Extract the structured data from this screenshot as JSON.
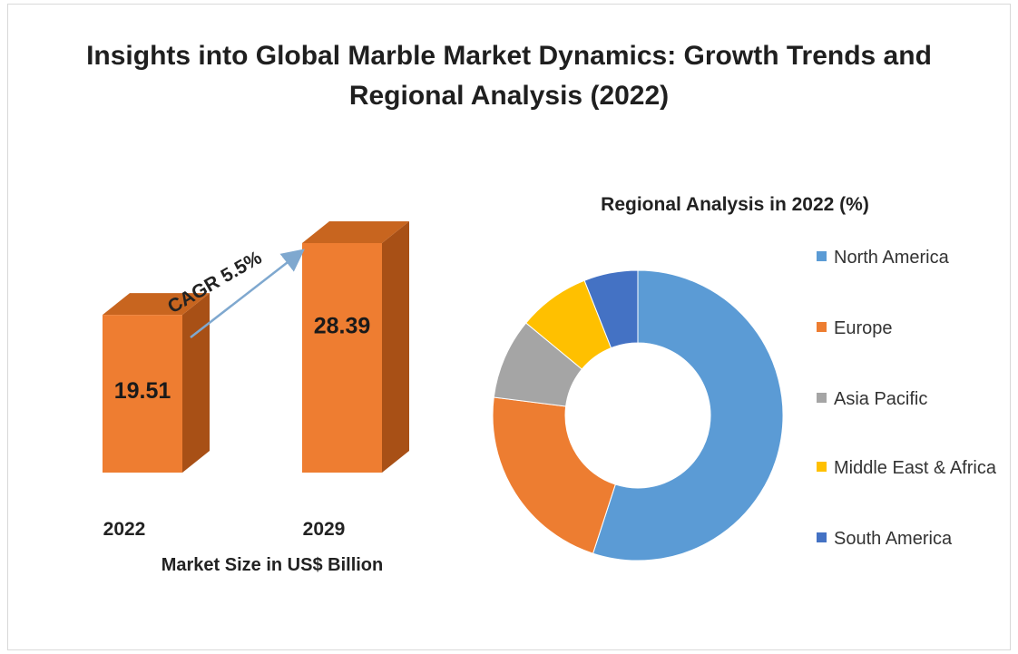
{
  "title": "Insights into Global Marble Market Dynamics: Growth Trends and Regional Analysis (2022)",
  "chart_data": [
    {
      "type": "bar",
      "categories": [
        "2022",
        "2029"
      ],
      "values": [
        19.51,
        28.39
      ],
      "value_labels": [
        "19.51",
        "28.39"
      ],
      "xlabel": "Market Size in US$ Billion",
      "annotation": "CAGR 5.5%",
      "colors": {
        "bar_front": "#ee7d31",
        "bar_side": "#a85016",
        "bar_top": "#c8651f",
        "arrow": "#7fa8cf"
      }
    },
    {
      "type": "pie",
      "donut": true,
      "title": "Regional Analysis in 2022 (%)",
      "legend_position": "right",
      "labels": [
        "North America",
        "Europe",
        "Asia Pacific",
        "Middle East & Africa",
        "South America"
      ],
      "values": [
        55,
        22,
        9,
        8,
        6
      ],
      "colors": [
        "#5b9bd5",
        "#ed7d31",
        "#a5a5a5",
        "#ffc000",
        "#4472c4"
      ]
    }
  ]
}
